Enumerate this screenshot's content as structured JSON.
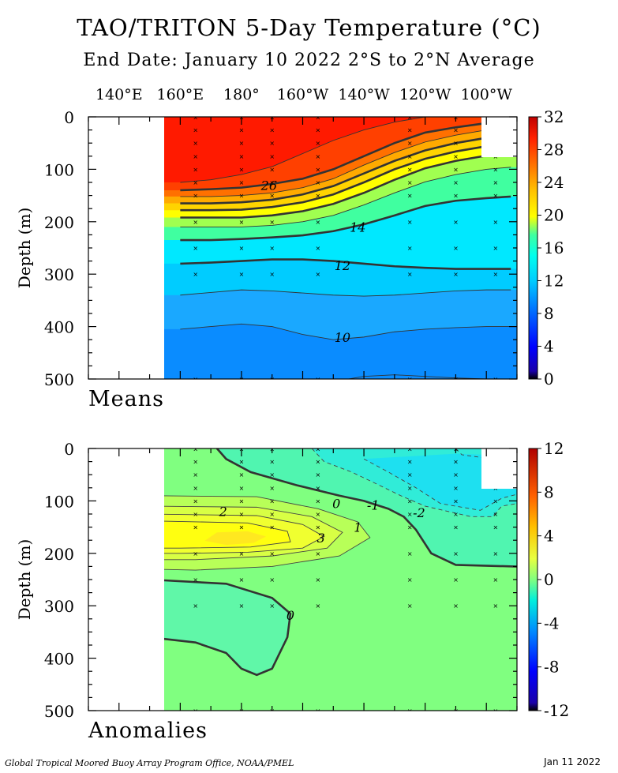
{
  "title": "TAO/TRITON 5-Day Temperature (°C)",
  "subtitle": "End Date: January 10 2022  2°S to 2°N Average",
  "footer_left": "Global Tropical Moored Buoy Array Program Office, NOAA/PMEL",
  "footer_right": "Jan 11 2022",
  "chart_data": [
    {
      "type": "heatmap",
      "panel_label": "Means",
      "x_tick_labels": [
        "140°E",
        "160°E",
        "180°",
        "160°W",
        "140°W",
        "120°W",
        "100°W"
      ],
      "x_ticks_lon": [
        140,
        160,
        180,
        200,
        220,
        240,
        260
      ],
      "ylabel": "Depth (m)",
      "y_ticks": [
        0,
        100,
        200,
        300,
        400,
        500
      ],
      "ylim": [
        500,
        0
      ],
      "colorbar_ticks": [
        0,
        4,
        8,
        12,
        16,
        20,
        24,
        28,
        32
      ],
      "colorbar_range": [
        0,
        32
      ],
      "contour_labels": [
        {
          "text": "26",
          "lon": 189,
          "depth": 130
        },
        {
          "text": "14",
          "lon": 218,
          "depth": 210
        },
        {
          "text": "12",
          "lon": 213,
          "depth": 283
        },
        {
          "text": "10",
          "lon": 213,
          "depth": 420
        }
      ],
      "isotherm_depths": {
        "lon": [
          160,
          170,
          180,
          190,
          200,
          210,
          220,
          230,
          240,
          250,
          260,
          268
        ],
        "t28": [
          125,
          120,
          110,
          95,
          70,
          45,
          25,
          10,
          0,
          0,
          0,
          0
        ],
        "t26": [
          140,
          138,
          135,
          128,
          118,
          100,
          75,
          50,
          30,
          20,
          12,
          8
        ],
        "t24": [
          152,
          152,
          150,
          145,
          135,
          118,
          92,
          68,
          48,
          35,
          25,
          20
        ],
        "t22": [
          165,
          165,
          163,
          158,
          148,
          132,
          108,
          84,
          64,
          50,
          40,
          34
        ],
        "t20": [
          178,
          178,
          177,
          172,
          163,
          148,
          125,
          100,
          80,
          66,
          56,
          50
        ],
        "t18": [
          192,
          192,
          192,
          188,
          180,
          166,
          145,
          120,
          98,
          84,
          74,
          68
        ],
        "t16": [
          210,
          210,
          210,
          207,
          200,
          188,
          168,
          145,
          124,
          110,
          100,
          96
        ],
        "t14": [
          235,
          235,
          233,
          230,
          226,
          218,
          205,
          188,
          170,
          160,
          155,
          152
        ],
        "t12": [
          280,
          278,
          275,
          272,
          272,
          275,
          280,
          285,
          288,
          290,
          290,
          290
        ],
        "t11": [
          340,
          335,
          330,
          332,
          336,
          340,
          342,
          340,
          336,
          332,
          330,
          330
        ],
        "t10": [
          405,
          400,
          395,
          400,
          415,
          425,
          420,
          410,
          405,
          402,
          400,
          400
        ],
        "t9": [
          520,
          520,
          520,
          520,
          520,
          505,
          495,
          492,
          495,
          498,
          500,
          500
        ]
      },
      "buoy_lon": [
        165,
        180,
        190,
        205,
        235,
        250,
        263
      ],
      "buoy_depths": [
        1,
        25,
        50,
        75,
        100,
        125,
        150,
        200,
        250,
        300,
        500
      ]
    },
    {
      "type": "heatmap",
      "panel_label": "Anomalies",
      "x_tick_labels": [
        "140°E",
        "160°E",
        "180°",
        "160°W",
        "140°W",
        "120°W",
        "100°W"
      ],
      "ylabel": "Depth (m)",
      "y_ticks": [
        0,
        100,
        200,
        300,
        400,
        500
      ],
      "ylim": [
        500,
        0
      ],
      "colorbar_ticks": [
        -12,
        -8,
        -4,
        0,
        4,
        8,
        12
      ],
      "colorbar_range": [
        -12,
        12
      ],
      "contour_labels": [
        {
          "text": "2",
          "lon": 174,
          "depth": 120
        },
        {
          "text": "3",
          "lon": 206,
          "depth": 170
        },
        {
          "text": "1",
          "lon": 218,
          "depth": 150
        },
        {
          "text": "0",
          "lon": 211,
          "depth": 105
        },
        {
          "text": "-1",
          "lon": 223,
          "depth": 108
        },
        {
          "text": "-2",
          "lon": 238,
          "depth": 122
        },
        {
          "text": "0",
          "lon": 196,
          "depth": 318
        }
      ]
    }
  ]
}
